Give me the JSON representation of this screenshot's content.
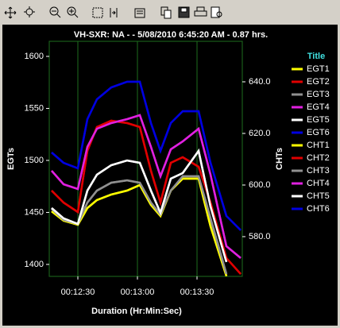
{
  "chart_data": {
    "type": "line",
    "title": "VH-SXR: NA -  - 5/08/2010 6:45:20 AM - 0.87 hrs.",
    "x_label": "Duration (Hr:Min:Sec)",
    "y_label": "EGTs",
    "y2_label": "CHTs",
    "legend_title": "Title",
    "grid": "x",
    "x": [
      736.8,
      742.8,
      750,
      754.8,
      759.6,
      766.8,
      774.8,
      781.2,
      786.8,
      791.6,
      796.8,
      802.8,
      810.8,
      816.8,
      824.8,
      832
    ],
    "xlim": [
      735.6,
      832.8
    ],
    "xticks": [
      {
        "value": 750,
        "label": "00:12:30"
      },
      {
        "value": 780,
        "label": "00:13:00"
      },
      {
        "value": 810,
        "label": "00:13:30"
      }
    ],
    "ylim": [
      1388.5,
      1614.5
    ],
    "yticks": [
      1400,
      1450,
      1500,
      1550,
      1600
    ],
    "y2lim": [
      564.6,
      655.7
    ],
    "y2ticks": [
      {
        "value": 580,
        "label": "580.0"
      },
      {
        "value": 600,
        "label": "600.0"
      },
      {
        "value": 620,
        "label": "620.0"
      },
      {
        "value": 640,
        "label": "640.0"
      }
    ],
    "series": [
      {
        "name": "EGT1",
        "color": "#ffff00",
        "values": [
          1451.1,
          1442,
          1438.2,
          1454.2,
          1461.8,
          1467.2,
          1471,
          1476.3,
          1457.3,
          1446.6,
          1471,
          1482.4,
          1482.4,
          1436.6,
          1389,
          null
        ]
      },
      {
        "name": "EGT2",
        "color": "#e00000",
        "values": [
          1471,
          1459.5,
          1450.4,
          1509.2,
          1532.1,
          1538.2,
          1535.9,
          1532.1,
          1490.1,
          1459.5,
          1497.7,
          1503,
          1493.9,
          1459.5,
          1406.1,
          1390.8
        ]
      },
      {
        "name": "EGT3",
        "color": "#909090",
        "values": [
          1453.4,
          1442.7,
          1438.9,
          1459.5,
          1471,
          1478.6,
          1480.9,
          1478.6,
          1459.5,
          1448,
          1471,
          1484.7,
          1484.7,
          1444.3,
          1390.8,
          null
        ]
      },
      {
        "name": "EGT4",
        "color": "#e020e0",
        "values": [
          1490.1,
          1477.1,
          1472.5,
          1513,
          1530.5,
          1535.9,
          1539.7,
          1543.5,
          1513,
          1484.7,
          1510.7,
          1518.3,
          1530.5,
          1486.3,
          1417.6,
          1406.1
        ]
      },
      {
        "name": "EGT5",
        "color": "#ffffff",
        "values": [
          1454.2,
          1444.3,
          1438.9,
          1471,
          1486.3,
          1495.4,
          1500,
          1497.7,
          1471,
          1449.6,
          1482.4,
          1487.8,
          1509.2,
          1455.7,
          1402.3,
          null
        ]
      },
      {
        "name": "EGT6",
        "color": "#0000e0",
        "values": [
          1507.6,
          1497.7,
          1492.4,
          1539.7,
          1558.8,
          1570.2,
          1575.6,
          1575.6,
          1535.9,
          1509.2,
          1535.9,
          1547.3,
          1547.3,
          1497.7,
          1446.6,
          1432.8
        ]
      },
      {
        "name": "CHT1",
        "color": "#ffff00",
        "axis": "y2",
        "values": [
          589.8,
          586.2,
          584.6,
          591.1,
          594.2,
          596.3,
          597.8,
          600,
          592.3,
          588,
          597.8,
          602.5,
          602.5,
          584,
          564.7,
          null
        ]
      },
      {
        "name": "CHT2",
        "color": "#e00000",
        "axis": "y2",
        "values": [
          597.8,
          593.2,
          589.5,
          613.2,
          622.5,
          624.9,
          624,
          622.5,
          605.5,
          593.2,
          608.6,
          610.8,
          607.1,
          593.2,
          571.7,
          565.5
        ]
      },
      {
        "name": "CHT3",
        "color": "#909090",
        "axis": "y2",
        "values": [
          590.8,
          586.5,
          584.9,
          593.2,
          597.8,
          600.9,
          601.8,
          600.9,
          593.2,
          588.6,
          597.8,
          603.4,
          603.4,
          587.1,
          565.5,
          null
        ]
      },
      {
        "name": "CHT4",
        "color": "#e020e0",
        "axis": "y2",
        "values": [
          605.5,
          600.3,
          598.5,
          614.8,
          621.8,
          624,
          625.5,
          627.1,
          614.8,
          603.4,
          613.8,
          616.9,
          621.8,
          604,
          576.3,
          571.7
        ]
      },
      {
        "name": "CHT5",
        "color": "#ffffff",
        "axis": "y2",
        "values": [
          591.1,
          587.1,
          584.9,
          597.8,
          604,
          607.7,
          609.5,
          608.6,
          597.8,
          589.2,
          602.5,
          604.6,
          613.2,
          591.7,
          570.2,
          null
        ]
      },
      {
        "name": "CHT6",
        "color": "#0000e0",
        "axis": "y2",
        "values": [
          612.6,
          608.6,
          606.5,
          625.5,
          633.2,
          637.8,
          640,
          640,
          624,
          613.2,
          624,
          628.6,
          628.6,
          608.6,
          588,
          582.5
        ]
      }
    ]
  }
}
